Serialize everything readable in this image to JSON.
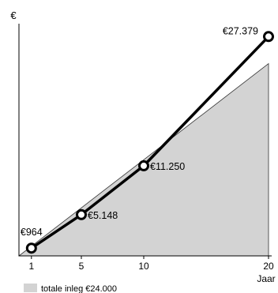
{
  "chart_data": {
    "type": "line",
    "title": "",
    "ylabel": "€",
    "xlabel": "Jaar",
    "x": [
      1,
      5,
      10,
      20
    ],
    "xlim": [
      0,
      20
    ],
    "tick_labels": [
      "1",
      "5",
      "10",
      "20"
    ],
    "series": [
      {
        "values": [
          964,
          5148,
          11250,
          27379
        ],
        "labels": [
          "€964",
          "€5.148",
          "€11.250",
          "€27.379"
        ],
        "color": "#000000",
        "marker": "open-circle"
      }
    ],
    "area": {
      "description": "cumulative deposit",
      "values": [
        1200,
        6000,
        12000,
        24000
      ],
      "color": "#d3d3d3",
      "legend_label": "totale inleg €24.000"
    },
    "ylim": [
      0,
      28000
    ],
    "grid": false,
    "legend_position": "bottom-left"
  }
}
